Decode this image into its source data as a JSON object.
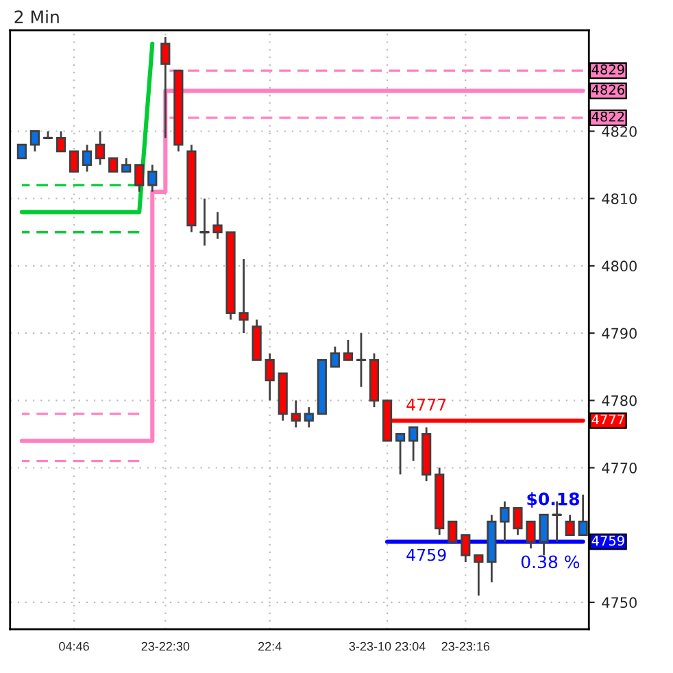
{
  "chart_data": {
    "type": "candlestick",
    "title": "2 Min",
    "categories": [
      null,
      null,
      null,
      null,
      "04:46",
      null,
      null,
      null,
      null,
      null,
      null,
      "23-22:30",
      null,
      null,
      null,
      null,
      null,
      null,
      null,
      "22:4",
      null,
      null,
      null,
      null,
      null,
      null,
      null,
      null,
      "3-23-10 23:04",
      null,
      null,
      null,
      null,
      null,
      "23-23:16",
      null,
      null,
      null,
      null,
      null,
      null,
      null,
      null,
      null
    ],
    "ohlc": [
      [
        4816,
        4818,
        4816,
        4818
      ],
      [
        4818,
        4820,
        4817,
        4820
      ],
      [
        4819,
        4820,
        4819,
        4819
      ],
      [
        4819,
        4820,
        4817,
        4817
      ],
      [
        4817,
        4817,
        4814,
        4814
      ],
      [
        4815,
        4818,
        4814,
        4817
      ],
      [
        4818,
        4820,
        4815,
        4816
      ],
      [
        4816,
        4816,
        4814,
        4814
      ],
      [
        4814,
        4816,
        4814,
        4815
      ],
      [
        4815,
        4815,
        4811,
        4812
      ],
      [
        4812,
        4815,
        4811,
        4814
      ],
      [
        4833,
        4834,
        4819,
        4830
      ],
      [
        4829,
        4829,
        4817,
        4818
      ],
      [
        4817,
        4818,
        4805,
        4806
      ],
      [
        4805,
        4810,
        4803,
        4805
      ],
      [
        4806,
        4808,
        4804,
        4805
      ],
      [
        4805,
        4805,
        4792,
        4793
      ],
      [
        4793,
        4801,
        4790,
        4792
      ],
      [
        4791,
        4792,
        4786,
        4786
      ],
      [
        4786,
        4787,
        4780,
        4783
      ],
      [
        4784,
        4784,
        4777,
        4778
      ],
      [
        4778,
        4780,
        4776,
        4777
      ],
      [
        4777,
        4779,
        4776,
        4778
      ],
      [
        4778,
        4786,
        4778,
        4786
      ],
      [
        4785,
        4788,
        4785,
        4787
      ],
      [
        4787,
        4789,
        4786,
        4786
      ],
      [
        4786,
        4790,
        4782,
        4786
      ],
      [
        4786,
        4787,
        4779,
        4780
      ],
      [
        4780,
        4780,
        4774,
        4774
      ],
      [
        4774,
        4775,
        4769,
        4775
      ],
      [
        4774,
        4776,
        4771,
        4776
      ],
      [
        4775,
        4776,
        4768,
        4769
      ],
      [
        4769,
        4770,
        4760,
        4761
      ],
      [
        4762,
        4762,
        4759,
        4759
      ],
      [
        4760,
        4760,
        4756,
        4757
      ],
      [
        4757,
        4757,
        4751,
        4756
      ],
      [
        4756,
        4763,
        4753,
        4762
      ],
      [
        4762,
        4765,
        4759,
        4764
      ],
      [
        4764,
        4764,
        4760,
        4761
      ],
      [
        4762,
        4762,
        4758,
        4759
      ],
      [
        4759,
        4763,
        4757,
        4763
      ],
      [
        4763,
        4765,
        4759,
        4763
      ],
      [
        4762,
        4763,
        4760,
        4760
      ],
      [
        4760,
        4766,
        4760,
        4762
      ]
    ],
    "colors": [
      "#0a6fe0",
      "#0a6fe0",
      "#404040",
      "#ff0000",
      "#ff0000",
      "#0a6fe0",
      "#ff0000",
      "#ff0000",
      "#0a6fe0",
      "#ff0000",
      "#0a6fe0",
      "#ff0000",
      "#ff0000",
      "#ff0000",
      "#404040",
      "#ff0000",
      "#ff0000",
      "#ff0000",
      "#ff0000",
      "#ff0000",
      "#ff0000",
      "#ff0000",
      "#0a6fe0",
      "#0a6fe0",
      "#0a6fe0",
      "#ff0000",
      "#404040",
      "#ff0000",
      "#ff0000",
      "#0a6fe0",
      "#0a6fe0",
      "#ff0000",
      "#ff0000",
      "#ff0000",
      "#ff0000",
      "#ff0000",
      "#0a6fe0",
      "#0a6fe0",
      "#ff0000",
      "#ff0000",
      "#0a6fe0",
      "#404040",
      "#ff0000",
      "#0a6fe0"
    ],
    "series": [
      {
        "type": "line",
        "color": "#00cc33",
        "line_style": "solid",
        "values": [
          4808,
          4808,
          4808,
          4808,
          4808,
          4808,
          4808,
          4808,
          4808,
          4808,
          4833,
          null,
          null,
          null,
          null,
          null,
          null,
          null,
          null,
          null,
          null,
          null,
          null,
          null,
          null,
          null,
          null,
          null,
          null,
          null,
          null,
          null,
          null,
          null,
          null,
          null,
          null,
          null,
          null,
          null,
          null,
          null,
          null,
          null
        ]
      },
      {
        "type": "line",
        "color": "#00cc33",
        "line_style": "dashed",
        "values": [
          4812,
          4812,
          4812,
          4812,
          4812,
          4812,
          4812,
          4812,
          4812,
          4812,
          null,
          null,
          null,
          null,
          null,
          null,
          null,
          null,
          null,
          null,
          null,
          null,
          null,
          null,
          null,
          null,
          null,
          null,
          null,
          null,
          null,
          null,
          null,
          null,
          null,
          null,
          null,
          null,
          null,
          null,
          null,
          null,
          null,
          null
        ]
      },
      {
        "type": "line",
        "color": "#00cc33",
        "line_style": "dashed",
        "values": [
          4805,
          4805,
          4805,
          4805,
          4805,
          4805,
          4805,
          4805,
          4805,
          4805,
          null,
          null,
          null,
          null,
          null,
          null,
          null,
          null,
          null,
          null,
          null,
          null,
          null,
          null,
          null,
          null,
          null,
          null,
          null,
          null,
          null,
          null,
          null,
          null,
          null,
          null,
          null,
          null,
          null,
          null,
          null,
          null,
          null,
          null
        ]
      },
      {
        "type": "step",
        "color": "#ff80c0",
        "line_style": "solid",
        "values": [
          4774,
          4774,
          4774,
          4774,
          4774,
          4774,
          4774,
          4774,
          4774,
          4774,
          4811,
          4826,
          4826,
          4826,
          4826,
          4826,
          4826,
          4826,
          4826,
          4826,
          4826,
          4826,
          4826,
          4826,
          4826,
          4826,
          4826,
          4826,
          4826,
          4826,
          4826,
          4826,
          4826,
          4826,
          4826,
          4826,
          4826,
          4826,
          4826,
          4826,
          4826,
          4826,
          4826,
          4826
        ],
        "value_labels": [
          null,
          null,
          null,
          null,
          null,
          null,
          null,
          null,
          null,
          null,
          null,
          null,
          null,
          null,
          null,
          null,
          null,
          null,
          null,
          null,
          null,
          null,
          null,
          null,
          null,
          null,
          null,
          null,
          null,
          null,
          null,
          null,
          null,
          null,
          null,
          null,
          null,
          null,
          null,
          null,
          null,
          null,
          null,
          "4826"
        ]
      },
      {
        "type": "line",
        "color": "#ff80c0",
        "line_style": "dashed",
        "values": [
          4778,
          4778,
          4778,
          4778,
          4778,
          4778,
          4778,
          4778,
          4778,
          4778,
          null,
          null,
          null,
          null,
          null,
          null,
          null,
          null,
          null,
          null,
          null,
          null,
          null,
          null,
          null,
          null,
          null,
          null,
          null,
          null,
          null,
          null,
          null,
          null,
          null,
          null,
          null,
          null,
          null,
          null,
          null,
          null,
          null,
          null
        ]
      },
      {
        "type": "line",
        "color": "#ff80c0",
        "line_style": "dashed",
        "values": [
          4771,
          4771,
          4771,
          4771,
          4771,
          4771,
          4771,
          4771,
          4771,
          4771,
          null,
          null,
          null,
          null,
          null,
          null,
          null,
          null,
          null,
          null,
          null,
          null,
          null,
          null,
          null,
          null,
          null,
          null,
          null,
          null,
          null,
          null,
          null,
          null,
          null,
          null,
          null,
          null,
          null,
          null,
          null,
          null,
          null,
          null
        ]
      },
      {
        "type": "line",
        "color": "#ff80c0",
        "line_style": "dashed",
        "values": [
          null,
          null,
          null,
          null,
          null,
          null,
          null,
          null,
          null,
          null,
          null,
          4829,
          4829,
          4829,
          4829,
          4829,
          4829,
          4829,
          4829,
          4829,
          4829,
          4829,
          4829,
          4829,
          4829,
          4829,
          4829,
          4829,
          4829,
          4829,
          4829,
          4829,
          4829,
          4829,
          4829,
          4829,
          4829,
          4829,
          4829,
          4829,
          4829,
          4829,
          4829,
          4829
        ],
        "value_labels": [
          null,
          null,
          null,
          null,
          null,
          null,
          null,
          null,
          null,
          null,
          null,
          null,
          null,
          null,
          null,
          null,
          null,
          null,
          null,
          null,
          null,
          null,
          null,
          null,
          null,
          null,
          null,
          null,
          null,
          null,
          null,
          null,
          null,
          null,
          null,
          null,
          null,
          null,
          null,
          null,
          null,
          null,
          null,
          "4829"
        ]
      },
      {
        "type": "line",
        "color": "#ff80c0",
        "line_style": "dashed",
        "values": [
          null,
          null,
          null,
          null,
          null,
          null,
          null,
          null,
          null,
          null,
          null,
          4822,
          4822,
          4822,
          4822,
          4822,
          4822,
          4822,
          4822,
          4822,
          4822,
          4822,
          4822,
          4822,
          4822,
          4822,
          4822,
          4822,
          4822,
          4822,
          4822,
          4822,
          4822,
          4822,
          4822,
          4822,
          4822,
          4822,
          4822,
          4822,
          4822,
          4822,
          4822,
          4822
        ],
        "value_labels": [
          null,
          null,
          null,
          null,
          null,
          null,
          null,
          null,
          null,
          null,
          null,
          null,
          null,
          null,
          null,
          null,
          null,
          null,
          null,
          null,
          null,
          null,
          null,
          null,
          null,
          null,
          null,
          null,
          null,
          null,
          null,
          null,
          null,
          null,
          null,
          null,
          null,
          null,
          null,
          null,
          null,
          null,
          null,
          "4822"
        ]
      },
      {
        "type": "line",
        "color": "#ff0000",
        "line_style": "solid",
        "values": [
          null,
          null,
          null,
          null,
          null,
          null,
          null,
          null,
          null,
          null,
          null,
          null,
          null,
          null,
          null,
          null,
          null,
          null,
          null,
          null,
          null,
          null,
          null,
          null,
          null,
          null,
          null,
          null,
          4777,
          4777,
          4777,
          4777,
          4777,
          4777,
          4777,
          4777,
          4777,
          4777,
          4777,
          4777,
          4777,
          4777,
          4777,
          4777
        ],
        "value_labels": [
          null,
          null,
          null,
          null,
          null,
          null,
          null,
          null,
          null,
          null,
          null,
          null,
          null,
          null,
          null,
          null,
          null,
          null,
          null,
          null,
          null,
          null,
          null,
          null,
          null,
          null,
          null,
          null,
          null,
          null,
          null,
          "4777",
          null,
          null,
          null,
          null,
          null,
          null,
          null,
          null,
          null,
          null,
          null,
          "4777"
        ]
      },
      {
        "type": "line",
        "color": "#0000ff",
        "line_style": "solid",
        "values": [
          null,
          null,
          null,
          null,
          null,
          null,
          null,
          null,
          null,
          null,
          null,
          null,
          null,
          null,
          null,
          null,
          null,
          null,
          null,
          null,
          null,
          null,
          null,
          null,
          null,
          null,
          null,
          null,
          4759,
          4759,
          4759,
          4759,
          4759,
          4759,
          4759,
          4759,
          4759,
          4759,
          4759,
          4759,
          4759,
          4759,
          4759,
          4759
        ],
        "value_labels": [
          null,
          null,
          null,
          null,
          null,
          null,
          null,
          null,
          null,
          null,
          null,
          null,
          null,
          null,
          null,
          null,
          null,
          null,
          null,
          null,
          null,
          null,
          null,
          null,
          null,
          null,
          null,
          null,
          null,
          null,
          null,
          "4759",
          null,
          null,
          null,
          null,
          null,
          null,
          null,
          null,
          null,
          null,
          null,
          "4759"
        ]
      }
    ],
    "annotations": [
      "$0.18",
      "0.38 %"
    ],
    "ylim": [
      4746,
      4835
    ],
    "yticks": [
      4750,
      4770,
      4780,
      4790,
      4800,
      4810,
      4820
    ],
    "grid": true
  }
}
